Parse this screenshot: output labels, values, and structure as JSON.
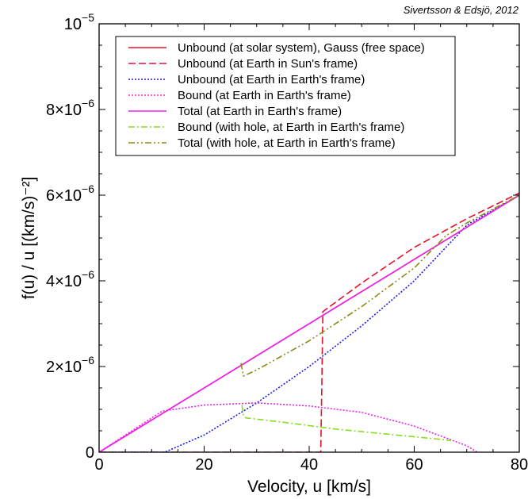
{
  "credit": "Sivertsson & Edsjö, 2012",
  "chart_data": {
    "type": "line",
    "xlabel": "Velocity, u [km/s]",
    "ylabel": "f(u) / u  [(km/s)⁻²]",
    "xlim": [
      0,
      80
    ],
    "ylim": [
      0,
      1e-05
    ],
    "x_ticks": [
      0,
      20,
      40,
      60,
      80
    ],
    "x_tick_labels": [
      "0",
      "20",
      "40",
      "60",
      "80"
    ],
    "y_ticks": [
      0,
      2e-06,
      4e-06,
      6e-06,
      8e-06,
      1e-05
    ],
    "y_tick_labels": [
      {
        "base": "0",
        "exp": ""
      },
      {
        "base": "2×10",
        "exp": "−6"
      },
      {
        "base": "4×10",
        "exp": "−6"
      },
      {
        "base": "6×10",
        "exp": "−6"
      },
      {
        "base": "8×10",
        "exp": "−6"
      },
      {
        "base": "10",
        "exp": "−5"
      }
    ],
    "legend_position": "top",
    "series": [
      {
        "name": "Unbound (at solar system), Gauss (free space)",
        "color": "#e8112d",
        "dash": "solid",
        "x": [
          0,
          80
        ],
        "y": [
          0,
          6e-06
        ]
      },
      {
        "name": "Unbound (at Earth in Sun's frame)",
        "color": "#e8112d",
        "dash": "dashed",
        "x": [
          0,
          42.2,
          42.4,
          42.6,
          50,
          60,
          70,
          80
        ],
        "y": [
          0,
          0,
          1.5e-06,
          3.28e-06,
          3.95e-06,
          4.78e-06,
          5.45e-06,
          6.05e-06
        ]
      },
      {
        "name": "Unbound (at Earth in Earth's frame)",
        "color": "#1a1aee",
        "dash": "dotted",
        "x": [
          0,
          12.5,
          20,
          30,
          40,
          50,
          60,
          70,
          80
        ],
        "y": [
          0,
          0,
          4e-07,
          1.15e-06,
          2e-06,
          2.95e-06,
          4e-06,
          5.3e-06,
          6e-06
        ]
      },
      {
        "name": "Bound (at Earth in Earth's frame)",
        "color": "#ee22ee",
        "dash": "dotted",
        "x": [
          0,
          12,
          20,
          30,
          40,
          50,
          60,
          70,
          72
        ],
        "y": [
          0,
          9.6e-07,
          1.1e-06,
          1.15e-06,
          1.08e-06,
          9.3e-07,
          6.1e-07,
          1.5e-07,
          0
        ]
      },
      {
        "name": "Total (at Earth in Earth's frame)",
        "color": "#ee22ee",
        "dash": "solid",
        "x": [
          0,
          80
        ],
        "y": [
          0,
          6e-06
        ]
      },
      {
        "name": "Bound (with hole, at Earth in Earth's frame)",
        "color": "#88dd22",
        "dash": "dashdot",
        "x": [
          27.2,
          27.5,
          28,
          35,
          45,
          55,
          65,
          67
        ],
        "y": [
          1.1e-06,
          8.5e-07,
          8e-07,
          7e-07,
          5.4e-07,
          4.2e-07,
          3e-07,
          2.7e-07
        ]
      },
      {
        "name": "Total (with hole, at Earth in Earth's frame)",
        "color": "#8b8b14",
        "dash": "dashdotdot",
        "x": [
          27,
          27.5,
          30,
          40,
          50,
          60,
          66,
          70,
          80
        ],
        "y": [
          2.08e-06,
          1.78e-06,
          1.92e-06,
          2.6e-06,
          3.4e-06,
          4.3e-06,
          5.05e-06,
          5.35e-06,
          6e-06
        ]
      }
    ]
  }
}
